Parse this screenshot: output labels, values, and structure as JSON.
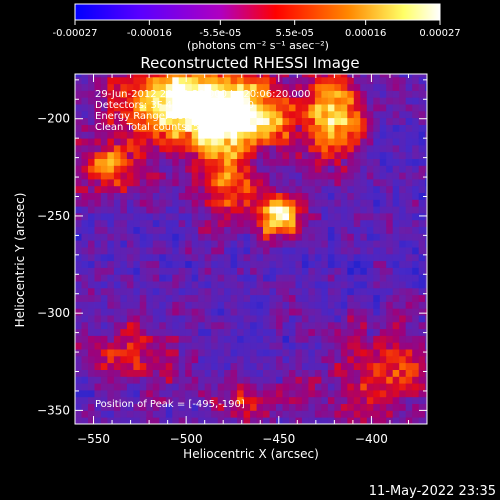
{
  "colorbar": {
    "ticks": [
      "-0.00027",
      "-0.00016",
      "-5.5e-05",
      "5.5e-05",
      "0.00016",
      "0.00027"
    ],
    "tick_values": [
      -0.00027,
      -0.00016,
      -5.5e-05,
      5.5e-05,
      0.00016,
      0.00027
    ],
    "range": [
      -0.00027,
      0.00027
    ],
    "units": "(photons cm⁻² s⁻¹ asec⁻²)",
    "colors": [
      "#0000ff",
      "#6a00ff",
      "#cc00aa",
      "#ff0000",
      "#ff8800",
      "#ffff66",
      "#ffffff"
    ]
  },
  "plot": {
    "title": "Reconstructed RHESSI Image",
    "info_lines": [
      "29-Jun-2012 20:00:20.000 to 20:06:20.000",
      "Detectors: 3F 4F 6F 7F 8F, Att 0",
      "Energy Range: 25.0 - 50.0 keV",
      "Clean    Total counts: 5.07E+03"
    ],
    "peak_label": "Position of Peak = [-495,-190]",
    "xlabel": "Heliocentric X (arcsec)",
    "ylabel": "Heliocentric Y (arcsec)"
  },
  "footer": {
    "timestamp": "11-May-2022 23:35"
  },
  "chart_data": {
    "type": "heatmap",
    "title": "Reconstructed RHESSI Image",
    "xlabel": "Heliocentric X (arcsec)",
    "ylabel": "Heliocentric Y (arcsec)",
    "xlim": [
      -560,
      -370
    ],
    "ylim": [
      -357,
      -177
    ],
    "x_ticks": [
      -550,
      -500,
      -450,
      -400
    ],
    "y_ticks": [
      -200,
      -250,
      -300,
      -350
    ],
    "x_tick_labels": [
      "−550",
      "−500",
      "−450",
      "−400"
    ],
    "y_tick_labels": [
      "−200",
      "−250",
      "−300",
      "−350"
    ],
    "peak_position": [
      -495,
      -190
    ],
    "intensity_range": [
      -0.00027,
      0.00027
    ],
    "grid": false,
    "sources": [
      {
        "x": -500,
        "y": -192,
        "sx": 26,
        "sy": 14,
        "amp": 1.0
      },
      {
        "x": -470,
        "y": -200,
        "sx": 18,
        "sy": 12,
        "amp": 0.8
      },
      {
        "x": -420,
        "y": -198,
        "sx": 12,
        "sy": 18,
        "amp": 0.75
      },
      {
        "x": -450,
        "y": -250,
        "sx": 8,
        "sy": 8,
        "amp": 0.9
      },
      {
        "x": -540,
        "y": -225,
        "sx": 14,
        "sy": 10,
        "amp": 0.6
      },
      {
        "x": -480,
        "y": -232,
        "sx": 12,
        "sy": 14,
        "amp": 0.55
      },
      {
        "x": -530,
        "y": -320,
        "sx": 18,
        "sy": 10,
        "amp": 0.45
      },
      {
        "x": -395,
        "y": -330,
        "sx": 20,
        "sy": 18,
        "amp": 0.45
      },
      {
        "x": -470,
        "y": -345,
        "sx": 14,
        "sy": 8,
        "amp": 0.4
      }
    ]
  }
}
